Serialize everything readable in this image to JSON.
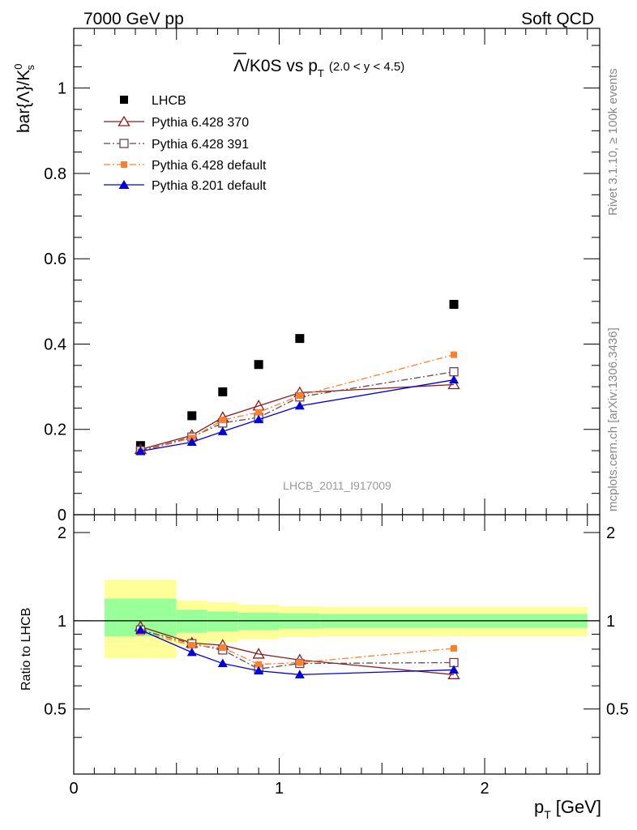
{
  "header": {
    "energy_label": "7000 GeV pp",
    "process_label": "Soft QCD"
  },
  "side": {
    "rivet_label": "Rivet 3.1.10, ≥ 100k events",
    "source_label": "mcplots.cern.ch [arXiv:1306.3436]"
  },
  "chart_data": {
    "type": "scatter",
    "title": {
      "main": "Λ/K0S vs p",
      "sub": "T",
      "range": "(2.0 < y < 4.5)"
    },
    "ylabel": {
      "main": "bar{Λ}/K",
      "sup": "0",
      "sub": "s"
    },
    "ratio_ylabel": "Ratio to LHCB",
    "xlabel": {
      "main": "p",
      "sub": "T",
      "unit": "[GeV]"
    },
    "watermark": "LHCB_2011_I917009",
    "xlim": [
      0,
      2.56
    ],
    "ylim": [
      0,
      1.14
    ],
    "ratio_ylim": [
      0.3,
      2.3
    ],
    "x_ticks": [
      "0",
      "1",
      "2"
    ],
    "y_ticks": [
      "0",
      "0.2",
      "0.4",
      "0.6",
      "0.8",
      "1"
    ],
    "ratio_ticks": [
      "0.5",
      "1",
      "2"
    ],
    "x": [
      0.325,
      0.575,
      0.725,
      0.9,
      1.1,
      1.85
    ],
    "series": [
      {
        "name": "LHCB",
        "color": "#000000",
        "marker": "square-filled",
        "line": "none",
        "values": [
          0.162,
          0.232,
          0.288,
          0.352,
          0.413,
          0.493
        ],
        "ratio": [
          1,
          1,
          1,
          1,
          1,
          1
        ]
      },
      {
        "name": "Pythia 6.428 370",
        "color": "#8b1a1a",
        "marker": "triangle-open",
        "line": "solid",
        "values": [
          0.153,
          0.186,
          0.228,
          0.255,
          0.286,
          0.305
        ],
        "ratio": [
          0.955,
          0.84,
          0.825,
          0.77,
          0.735,
          0.655
        ]
      },
      {
        "name": "Pythia 6.428 391",
        "color": "#6b4550",
        "marker": "square-open",
        "line": "dashdot",
        "values": [
          0.15,
          0.182,
          0.215,
          0.228,
          0.276,
          0.335
        ],
        "ratio": [
          0.93,
          0.835,
          0.795,
          0.685,
          0.715,
          0.72
        ]
      },
      {
        "name": "Pythia 6.428 default",
        "color": "#ff7f2a",
        "marker": "square-filled-small",
        "line": "dashdot",
        "values": [
          0.148,
          0.18,
          0.222,
          0.24,
          0.279,
          0.375
        ],
        "ratio": [
          0.915,
          0.825,
          0.81,
          0.71,
          0.72,
          0.805
        ]
      },
      {
        "name": "Pythia 8.201 default",
        "color": "#0000dd",
        "marker": "triangle-filled",
        "line": "solid",
        "values": [
          0.149,
          0.17,
          0.195,
          0.223,
          0.255,
          0.316
        ],
        "ratio": [
          0.93,
          0.78,
          0.715,
          0.675,
          0.655,
          0.68
        ]
      }
    ],
    "bands": {
      "x_edges": [
        0.15,
        0.5,
        0.65,
        0.8,
        1.0,
        1.2,
        2.5
      ],
      "inner_lo": [
        0.885,
        0.91,
        0.92,
        0.93,
        0.94,
        0.945
      ],
      "inner_hi": [
        1.19,
        1.09,
        1.075,
        1.065,
        1.06,
        1.055
      ],
      "outer_lo": [
        0.745,
        0.825,
        0.845,
        0.865,
        0.88,
        0.885
      ],
      "outer_hi": [
        1.38,
        1.175,
        1.155,
        1.135,
        1.12,
        1.115
      ],
      "inner_color": "#99ff99",
      "outer_color": "#ffff99"
    }
  }
}
